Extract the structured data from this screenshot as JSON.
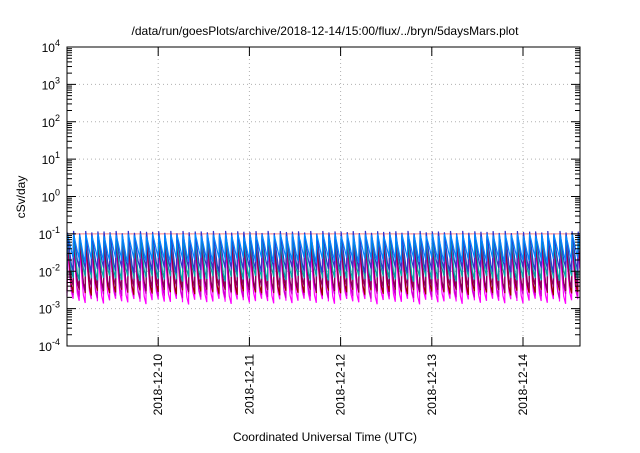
{
  "chart_data": {
    "type": "line",
    "title": "/data/run/goesPlots/archive/2018-12-14/15:00/flux/../bryn/5daysMars.plot",
    "xlabel": "Coordinated Universal Time (UTC)",
    "ylabel": "cSv/day",
    "y_scale": "log",
    "ylim": [
      0.0001,
      10000
    ],
    "xlim": [
      "2018-12-09T00:00",
      "2018-12-14T15:00"
    ],
    "grid": true,
    "legend": "none",
    "x_ticks": [
      "2018-12-10",
      "2018-12-11",
      "2018-12-12",
      "2018-12-13",
      "2018-12-14"
    ],
    "y_ticks": [
      {
        "value": 0.0001,
        "base": "10",
        "exp": "-4"
      },
      {
        "value": 0.001,
        "base": "10",
        "exp": "-3"
      },
      {
        "value": 0.01,
        "base": "10",
        "exp": "-2"
      },
      {
        "value": 0.1,
        "base": "10",
        "exp": "-1"
      },
      {
        "value": 1,
        "base": "10",
        "exp": "0"
      },
      {
        "value": 10,
        "base": "10",
        "exp": "1"
      },
      {
        "value": 100,
        "base": "10",
        "exp": "2"
      },
      {
        "value": 1000,
        "base": "10",
        "exp": "3"
      },
      {
        "value": 10000,
        "base": "10",
        "exp": "4"
      }
    ],
    "reference_line": {
      "value": 0.1,
      "color": "#ff8888"
    },
    "cycle_period_hours": 1.6,
    "series": [
      {
        "color": "#ff00ff",
        "peak": 0.045,
        "trough": 0.0016
      },
      {
        "color": "#cc00cc",
        "peak": 0.06,
        "trough": 0.0023
      },
      {
        "color": "#990000",
        "peak": 0.075,
        "trough": 0.0028
      },
      {
        "color": "#880066",
        "peak": 0.09,
        "trough": 0.0035
      },
      {
        "color": "#00aaaa",
        "peak": 0.1,
        "trough": 0.0065
      },
      {
        "color": "#3333cc",
        "peak": 0.12,
        "trough": 0.011
      },
      {
        "color": "#0088ff",
        "peak": 0.1,
        "trough": 0.02
      }
    ]
  }
}
